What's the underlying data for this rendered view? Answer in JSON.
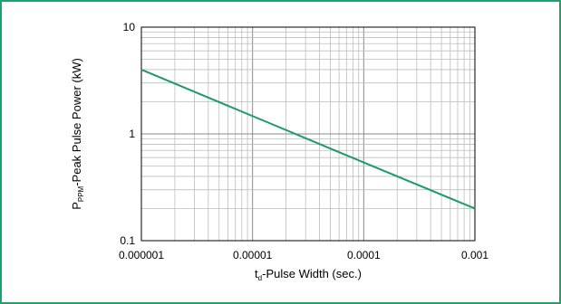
{
  "chart_data": {
    "type": "line",
    "x_scale": "log",
    "y_scale": "log",
    "xlim": [
      1e-06,
      0.001
    ],
    "ylim": [
      0.1,
      10
    ],
    "grid": true,
    "x_ticks": [
      "0.000001",
      "0.00001",
      "0.0001",
      "0.001"
    ],
    "y_ticks": [
      "10",
      "1",
      "0.1"
    ],
    "xlabel_main": "t",
    "xlabel_sub": "d",
    "xlabel_rest": "-Pulse Width (sec.)",
    "ylabel_main": "P",
    "ylabel_sub": "PPM",
    "ylabel_rest": "-Peak Pulse Power (kW)",
    "series": [
      {
        "x": [
          1e-06,
          1e-05,
          0.0001,
          0.001
        ],
        "values": [
          4.0,
          1.47,
          0.54,
          0.2
        ]
      }
    ]
  },
  "colors": {
    "frame": "#22a06b",
    "line": "#1f9a6a",
    "grid": "#bdbdbd",
    "axis": "#000000"
  }
}
